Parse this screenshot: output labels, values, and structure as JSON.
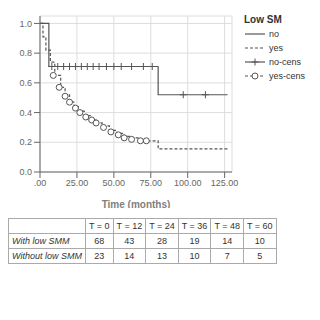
{
  "chart_data": {
    "type": "step",
    "xlabel": "Time (months)",
    "legend_title": "Low SM",
    "grid": true,
    "xlim": [
      0,
      130
    ],
    "ylim": [
      0.0,
      1.05
    ],
    "xticks": [
      {
        "value": 0,
        "label": ".00"
      },
      {
        "value": 25,
        "label": "25.00"
      },
      {
        "value": 50,
        "label": "50.00"
      },
      {
        "value": 75,
        "label": "75.00"
      },
      {
        "value": 100,
        "label": "100.00"
      },
      {
        "value": 125,
        "label": "125.00"
      }
    ],
    "yticks": [
      {
        "value": 0.0,
        "label": "0.0"
      },
      0.2,
      0.4,
      0.6,
      0.8,
      {
        "value": 1.0,
        "label": "1.0"
      }
    ],
    "series": [
      {
        "name": "no",
        "type": "step",
        "color": "#555555",
        "line_style": "solid",
        "x": [
          0,
          3,
          6,
          6,
          80,
          80,
          95,
          127
        ],
        "values": [
          1.0,
          1.0,
          1.0,
          0.71,
          0.71,
          0.52,
          0.52,
          0.52
        ]
      },
      {
        "name": "yes",
        "type": "step",
        "color": "#555555",
        "line_style": "dashed",
        "x": [
          0,
          2,
          4,
          7,
          10,
          14,
          17,
          20,
          23,
          26,
          30,
          34,
          38,
          42,
          47,
          52,
          57,
          62,
          67,
          72,
          80,
          127
        ],
        "values": [
          1.0,
          0.91,
          0.82,
          0.74,
          0.65,
          0.57,
          0.52,
          0.47,
          0.44,
          0.41,
          0.38,
          0.35,
          0.33,
          0.31,
          0.28,
          0.26,
          0.24,
          0.23,
          0.22,
          0.21,
          0.155,
          0.155
        ]
      },
      {
        "name": "no-cens",
        "type": "scatter",
        "color": "#555555",
        "line_style": "solid",
        "marker": "plus",
        "x": [
          8,
          12,
          16,
          20,
          24,
          28,
          32,
          36,
          40,
          45,
          50,
          55,
          62,
          70,
          76,
          97,
          112
        ],
        "values": [
          0.71,
          0.71,
          0.71,
          0.71,
          0.71,
          0.71,
          0.71,
          0.71,
          0.71,
          0.71,
          0.71,
          0.71,
          0.71,
          0.71,
          0.71,
          0.52,
          0.52
        ]
      },
      {
        "name": "yes-cens",
        "type": "scatter",
        "color": "#555555",
        "line_style": "dashed",
        "marker": "circle",
        "x": [
          9,
          13,
          17,
          20,
          24,
          27,
          31,
          35,
          38,
          43,
          48,
          53,
          57,
          62,
          68,
          72
        ],
        "values": [
          0.65,
          0.57,
          0.51,
          0.47,
          0.43,
          0.4,
          0.37,
          0.35,
          0.33,
          0.3,
          0.27,
          0.25,
          0.23,
          0.22,
          0.21,
          0.21
        ]
      }
    ],
    "table": {
      "headers": [
        "T = 0",
        "T = 12",
        "T = 24",
        "T = 36",
        "T = 48",
        "T = 60"
      ],
      "rows": [
        {
          "label": "With low SMM",
          "values": [
            68,
            43,
            28,
            19,
            14,
            10
          ]
        },
        {
          "label": "Without low SMM",
          "values": [
            23,
            14,
            13,
            10,
            7,
            5
          ]
        }
      ]
    }
  }
}
